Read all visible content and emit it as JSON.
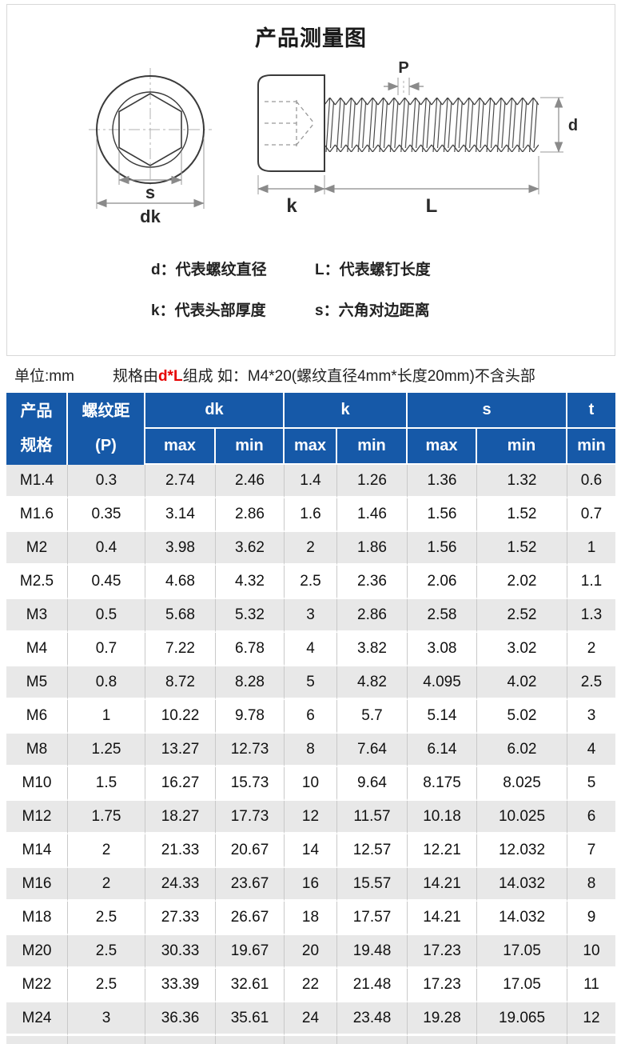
{
  "card": {
    "title": "产品测量图",
    "legend": [
      {
        "key": "d：",
        "text": "代表螺纹直径"
      },
      {
        "key": "L：",
        "text": "代表螺钉长度"
      },
      {
        "key": "k：",
        "text": "代表头部厚度"
      },
      {
        "key": "s：",
        "text": "六角对边距离"
      }
    ]
  },
  "diagram": {
    "labels": {
      "s": "s",
      "dk": "dk",
      "k": "k",
      "L": "L",
      "P": "P",
      "d": "d"
    }
  },
  "unit_line": {
    "unit": "单位:mm",
    "spec_prefix": "规格由",
    "spec_highlight": "d*L",
    "spec_suffix": "组成 如：M4*20(螺纹直径4mm*长度20mm)不含头部"
  },
  "table": {
    "header": {
      "product_line1": "产品",
      "product_line2": "规格",
      "pitch_line1": "螺纹距",
      "pitch_line2": "(P)",
      "group_dk": "dk",
      "group_k": "k",
      "group_s": "s",
      "group_t": "t",
      "sub": [
        "max",
        "min",
        "max",
        "min",
        "max",
        "min",
        "min"
      ]
    },
    "rows": [
      [
        "M1.4",
        "0.3",
        "2.74",
        "2.46",
        "1.4",
        "1.26",
        "1.36",
        "1.32",
        "0.6"
      ],
      [
        "M1.6",
        "0.35",
        "3.14",
        "2.86",
        "1.6",
        "1.46",
        "1.56",
        "1.52",
        "0.7"
      ],
      [
        "M2",
        "0.4",
        "3.98",
        "3.62",
        "2",
        "1.86",
        "1.56",
        "1.52",
        "1"
      ],
      [
        "M2.5",
        "0.45",
        "4.68",
        "4.32",
        "2.5",
        "2.36",
        "2.06",
        "2.02",
        "1.1"
      ],
      [
        "M3",
        "0.5",
        "5.68",
        "5.32",
        "3",
        "2.86",
        "2.58",
        "2.52",
        "1.3"
      ],
      [
        "M4",
        "0.7",
        "7.22",
        "6.78",
        "4",
        "3.82",
        "3.08",
        "3.02",
        "2"
      ],
      [
        "M5",
        "0.8",
        "8.72",
        "8.28",
        "5",
        "4.82",
        "4.095",
        "4.02",
        "2.5"
      ],
      [
        "M6",
        "1",
        "10.22",
        "9.78",
        "6",
        "5.7",
        "5.14",
        "5.02",
        "3"
      ],
      [
        "M8",
        "1.25",
        "13.27",
        "12.73",
        "8",
        "7.64",
        "6.14",
        "6.02",
        "4"
      ],
      [
        "M10",
        "1.5",
        "16.27",
        "15.73",
        "10",
        "9.64",
        "8.175",
        "8.025",
        "5"
      ],
      [
        "M12",
        "1.75",
        "18.27",
        "17.73",
        "12",
        "11.57",
        "10.18",
        "10.025",
        "6"
      ],
      [
        "M14",
        "2",
        "21.33",
        "20.67",
        "14",
        "12.57",
        "12.21",
        "12.032",
        "7"
      ],
      [
        "M16",
        "2",
        "24.33",
        "23.67",
        "16",
        "15.57",
        "14.21",
        "14.032",
        "8"
      ],
      [
        "M18",
        "2.5",
        "27.33",
        "26.67",
        "18",
        "17.57",
        "14.21",
        "14.032",
        "9"
      ],
      [
        "M20",
        "2.5",
        "30.33",
        "19.67",
        "20",
        "19.48",
        "17.23",
        "17.05",
        "10"
      ],
      [
        "M22",
        "2.5",
        "33.39",
        "32.61",
        "22",
        "21.48",
        "17.23",
        "17.05",
        "11"
      ],
      [
        "M24",
        "3",
        "36.36",
        "35.61",
        "24",
        "23.48",
        "19.28",
        "19.065",
        "12"
      ]
    ]
  },
  "colors": {
    "header_blue": "#1659a8",
    "accent_red": "#e60000",
    "row_alt_gray": "#e8e8e8"
  }
}
